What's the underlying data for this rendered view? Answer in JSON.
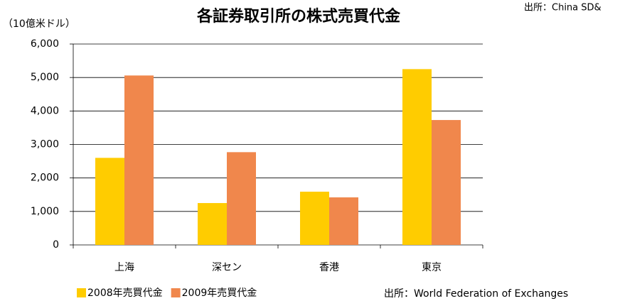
{
  "chart_data": {
    "type": "bar",
    "title": "各証券取引所の株式売買代金",
    "y_label": "（10億米ドル）",
    "source": "出所：World Federation of Exchanges",
    "annotation": "出所：China SD&",
    "categories": [
      "上海",
      "深セン",
      "香港",
      "東京"
    ],
    "series": [
      {
        "name": "2008年売買代金",
        "color": "#FFCC00",
        "values": [
          2600,
          1250,
          1590,
          5250
        ]
      },
      {
        "name": "2009年売買代金",
        "color": "#F0874C",
        "values": [
          5060,
          2770,
          1420,
          3730
        ]
      }
    ],
    "ylim": [
      0,
      6000
    ],
    "yticks": [
      0,
      {
        "value": 1000,
        "label": "1,000"
      },
      {
        "value": 2000,
        "label": "2,000"
      },
      {
        "value": 3000,
        "label": "3,000"
      },
      {
        "value": 4000,
        "label": "4,000"
      },
      {
        "value": 5000,
        "label": "5,000"
      },
      {
        "value": 6000,
        "label": "6,000"
      }
    ],
    "grid": true,
    "legend": "bottom"
  }
}
